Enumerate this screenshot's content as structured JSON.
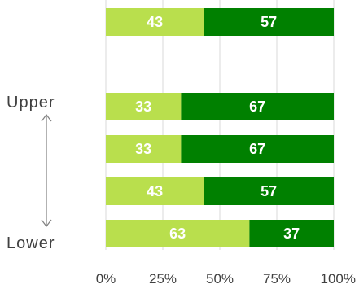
{
  "chart_data": {
    "type": "bar",
    "orientation": "horizontal",
    "stacked": true,
    "rows": [
      {
        "values": [
          43,
          57
        ]
      },
      null,
      {
        "values": [
          33,
          67
        ]
      },
      {
        "values": [
          33,
          67
        ]
      },
      {
        "values": [
          43,
          57
        ]
      },
      {
        "values": [
          63,
          37
        ]
      }
    ],
    "series": [
      {
        "values": [
          43,
          33,
          33,
          43,
          63
        ],
        "color": "#b9df4d"
      },
      {
        "values": [
          57,
          67,
          67,
          57,
          37
        ],
        "color": "#008000"
      }
    ],
    "x_ticks": [
      "0%",
      "25%",
      "50%",
      "75%",
      "100%"
    ],
    "xlim": [
      0,
      100
    ],
    "grid": true,
    "legend": "none",
    "side_labels": {
      "top": "Upper",
      "bottom": "Lower"
    },
    "colors": {
      "gridline": "#d9d9d9",
      "arrow": "#7f7f7f",
      "text": "#404040"
    }
  }
}
